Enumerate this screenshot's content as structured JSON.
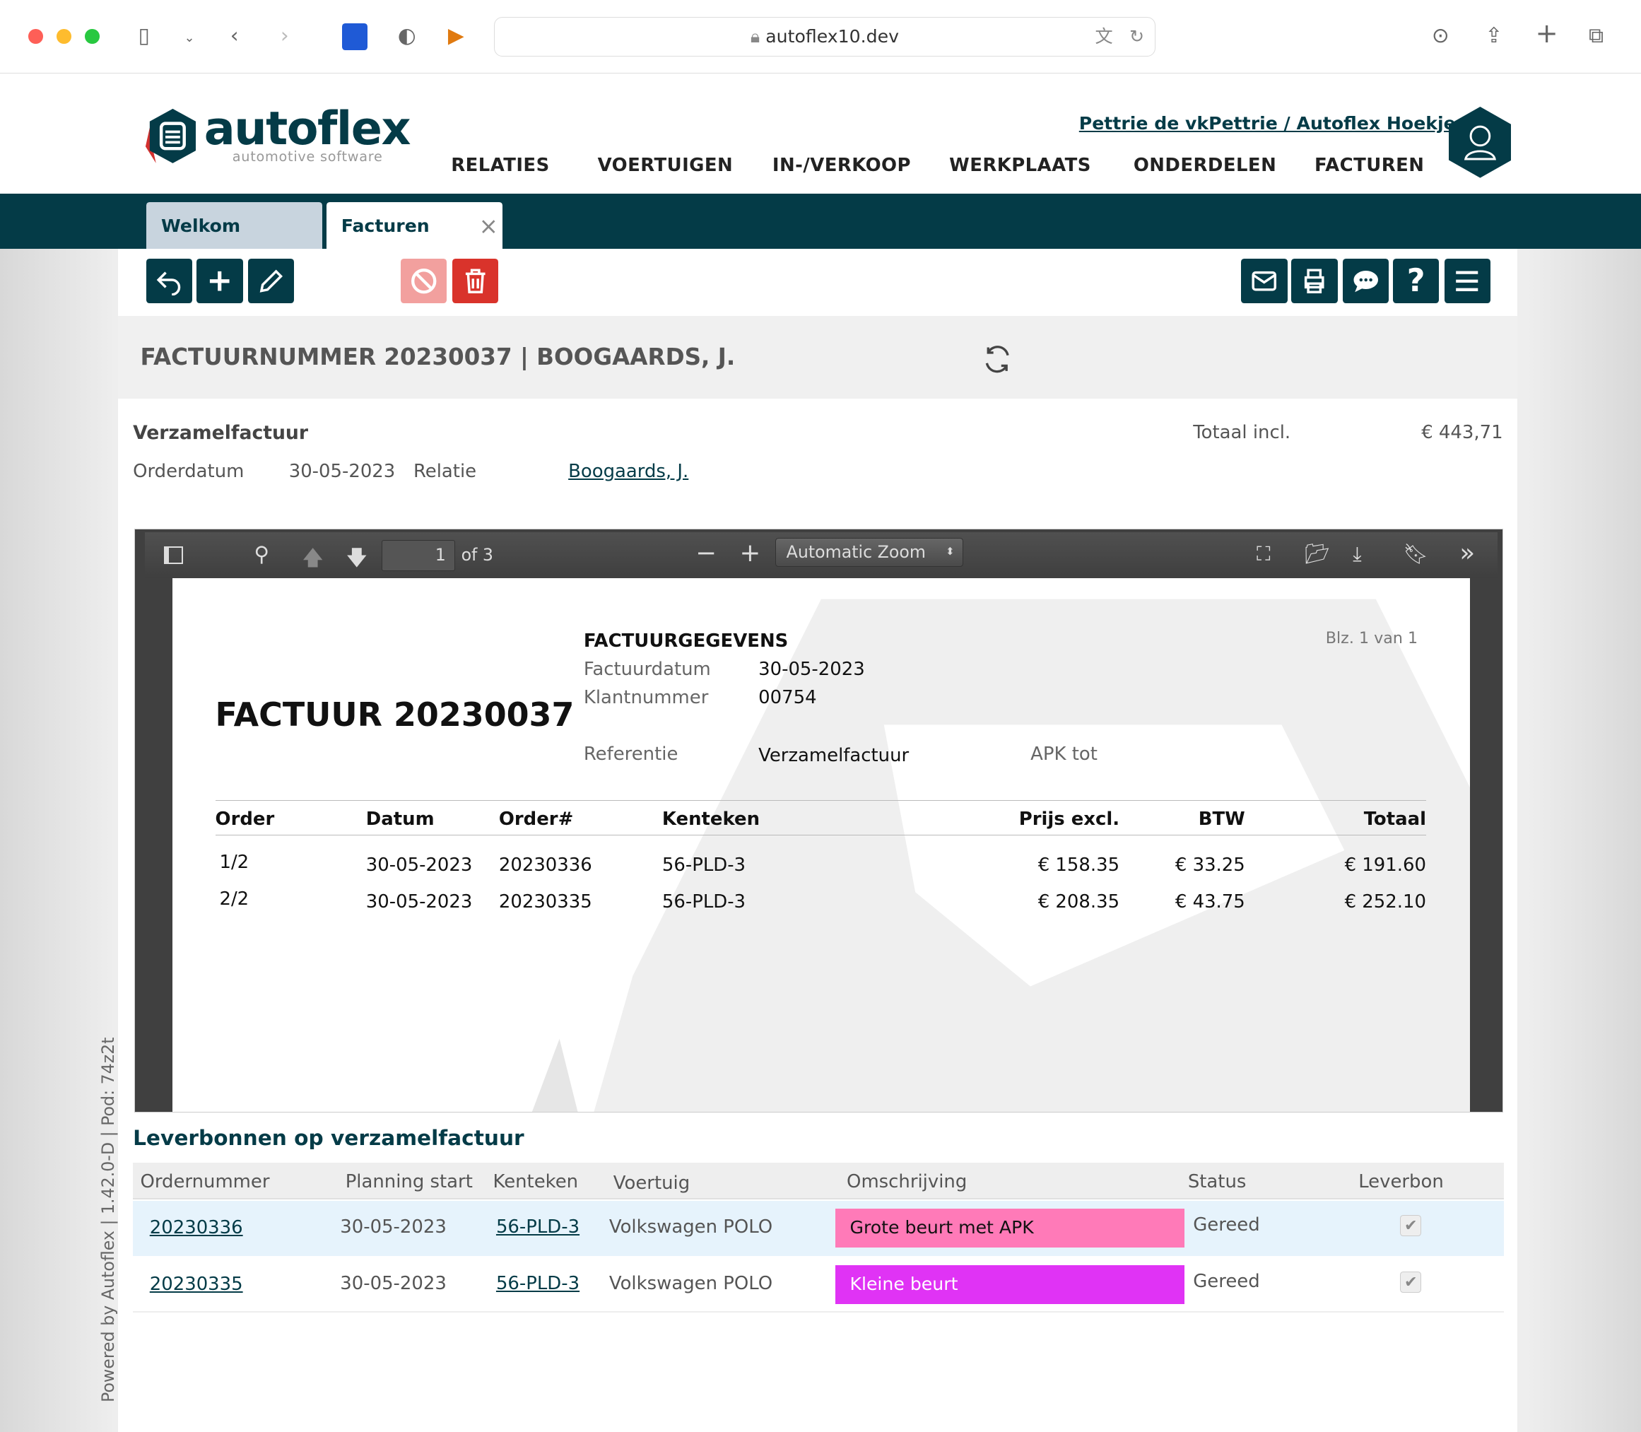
{
  "browser": {
    "url": "autoflex10.dev"
  },
  "header": {
    "logo_text": "autoflex",
    "logo_sub": "automotive software",
    "user_link": "Pettrie de vkPettrie / Autoflex Hoekje",
    "nav": [
      "RELATIES",
      "VOERTUIGEN",
      "IN-/VERKOOP",
      "WERKPLAATS",
      "ONDERDELEN",
      "FACTUREN"
    ]
  },
  "tabs": [
    {
      "label": "Welkom"
    },
    {
      "label": "Facturen",
      "close": "×"
    }
  ],
  "toolbar": {
    "left": [
      "undo-icon",
      "plus-icon",
      "pencil-icon"
    ],
    "disabled": [
      "ban-icon",
      "trash-icon"
    ],
    "right": [
      "mail-icon",
      "print-icon",
      "chat-icon",
      "help-icon",
      "menu-icon"
    ]
  },
  "title": "FACTUURNUMMER 20230037 | BOOGAARDS, J.",
  "info": {
    "type": "Verzamelfactuur",
    "total_label": "Totaal incl.",
    "total": "€ 443,71",
    "orderdatum_label": "Orderdatum",
    "orderdatum": "30-05-2023",
    "relatie_label": "Relatie",
    "relatie": "Boogaards, J."
  },
  "pdf_toolbar": {
    "page": "1",
    "of": "of 3",
    "zoom": "Automatic Zoom"
  },
  "pdf": {
    "title": "FACTUUR 20230037",
    "section": "FACTUURGEGEVENS",
    "page_label": "Blz. 1 van 1",
    "factuurdatum_label": "Factuurdatum",
    "factuurdatum": "30-05-2023",
    "klantnummer_label": "Klantnummer",
    "klantnummer": "00754",
    "referentie_label": "Referentie",
    "referentie": "Verzamelfactuur",
    "apk_label": "APK tot",
    "columns": [
      "Order",
      "Datum",
      "Order#",
      "Kenteken",
      "Prijs excl.",
      "BTW",
      "Totaal"
    ],
    "rows": [
      [
        "1/2",
        "30-05-2023",
        "20230336",
        "56-PLD-3",
        "€ 158.35",
        "€ 33.25",
        "€ 191.60"
      ],
      [
        "2/2",
        "30-05-2023",
        "20230335",
        "56-PLD-3",
        "€ 208.35",
        "€ 43.75",
        "€ 252.10"
      ]
    ]
  },
  "leverbonnen": {
    "heading": "Leverbonnen op verzamelfactuur",
    "columns": [
      "Ordernummer",
      "Planning start",
      "Kenteken",
      "Voertuig",
      "Omschrijving",
      "Status",
      "Leverbon"
    ],
    "rows": [
      {
        "order": "20230336",
        "start": "30-05-2023",
        "kenteken": "56-PLD-3",
        "voertuig": "Volkswagen POLO",
        "omschrijving": "Grote beurt met APK",
        "color": "#ff7ab8",
        "status": "Gereed",
        "leverbon": true
      },
      {
        "order": "20230335",
        "start": "30-05-2023",
        "kenteken": "56-PLD-3",
        "voertuig": "Volkswagen POLO",
        "omschrijving": "Kleine beurt",
        "color": "#e033f5",
        "status": "Gereed",
        "leverbon": true
      }
    ]
  },
  "footer_vertical": "Powered by Autoflex | 1.42.0-D | Pod: 74z2t",
  "colors": {
    "brand": "#043b47",
    "logo_red": "#d3312f"
  }
}
